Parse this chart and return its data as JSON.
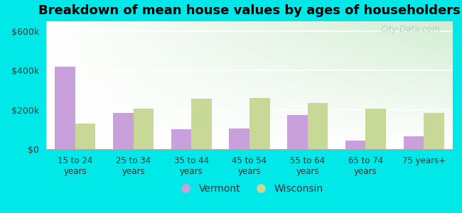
{
  "title": "Breakdown of mean house values by ages of householders",
  "categories": [
    "15 to 24\nyears",
    "25 to 34\nyears",
    "35 to 44\nyears",
    "45 to 54\nyears",
    "55 to 64\nyears",
    "65 to 74\nyears",
    "75 years+"
  ],
  "vermont": [
    420000,
    185000,
    100000,
    105000,
    175000,
    45000,
    65000
  ],
  "wisconsin": [
    130000,
    205000,
    255000,
    260000,
    235000,
    205000,
    185000
  ],
  "vermont_color": "#c9a0dc",
  "wisconsin_color": "#c8d896",
  "background_color": "#00e8e8",
  "title_fontsize": 13,
  "yticks": [
    0,
    200000,
    400000,
    600000
  ],
  "ytick_labels": [
    "$0",
    "$200k",
    "$400k",
    "$600k"
  ],
  "ylim": [
    0,
    650000
  ],
  "legend_labels": [
    "Vermont",
    "Wisconsin"
  ],
  "watermark": "City-Data.com",
  "bar_width": 0.35
}
